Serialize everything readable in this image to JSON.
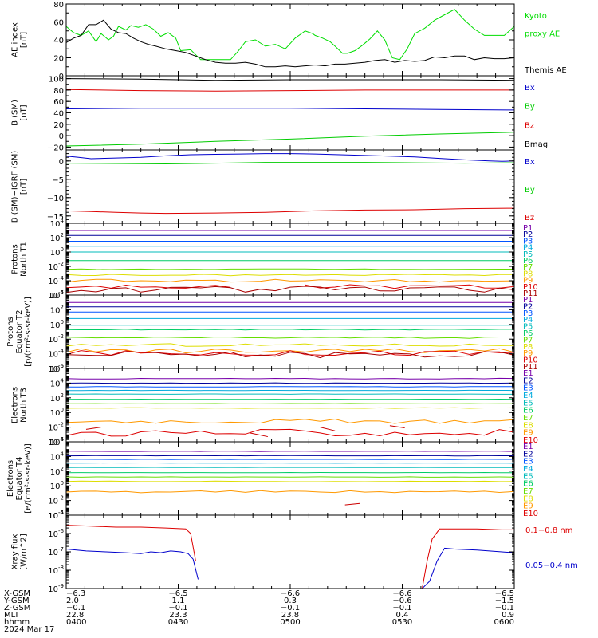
{
  "panels": [
    {
      "id": "ae",
      "type": "line",
      "ylabel": [
        "AE index",
        "[nT]"
      ],
      "ylim": [
        0,
        80
      ],
      "ticks": [
        {
          "v": 0,
          "label": "0"
        },
        {
          "v": 20,
          "label": "20"
        },
        {
          "v": 40,
          "label": "40"
        },
        {
          "v": 60,
          "label": "60"
        },
        {
          "v": 80,
          "label": "80"
        }
      ],
      "minor_step": 10,
      "legend": [
        {
          "text": "Kyoto",
          "color": "#00dd00"
        },
        {
          "text": "proxy AE",
          "color": "#00dd00"
        },
        {
          "text": "",
          "color": "#000000"
        },
        {
          "text": "Themis AE",
          "color": "#000000"
        }
      ],
      "series": [
        {
          "name": "Kyoto proxy AE",
          "color": "#00dd00",
          "x": [
            0,
            3,
            6,
            9,
            12,
            14,
            17,
            19,
            21,
            24,
            26,
            29,
            32,
            35,
            38,
            41,
            44,
            46,
            50,
            54,
            57,
            62,
            66,
            69,
            72,
            76,
            80,
            84,
            88,
            92,
            96,
            99,
            100,
            103,
            106,
            108,
            111,
            113,
            116,
            119,
            122,
            125,
            128,
            131,
            134,
            137,
            140,
            144,
            148,
            152,
            156,
            160,
            164,
            168,
            172,
            176,
            180
          ],
          "y": [
            55,
            48,
            45,
            50,
            38,
            47,
            40,
            44,
            55,
            51,
            56,
            54,
            57,
            52,
            44,
            48,
            42,
            28,
            29,
            18,
            18,
            18,
            18,
            27,
            38,
            40,
            33,
            35,
            30,
            42,
            50,
            47,
            45,
            42,
            38,
            33,
            25,
            25,
            28,
            34,
            41,
            50,
            40,
            20,
            18,
            30,
            47,
            53,
            62,
            68,
            74,
            62,
            52,
            45,
            45,
            45,
            55
          ]
        },
        {
          "name": "Themis AE",
          "color": "#000000",
          "x": [
            0,
            3,
            6,
            9,
            12,
            15,
            18,
            21,
            24,
            27,
            30,
            33,
            36,
            40,
            44,
            48,
            52,
            56,
            60,
            64,
            68,
            72,
            76,
            80,
            84,
            88,
            92,
            96,
            100,
            104,
            108,
            112,
            116,
            120,
            124,
            128,
            132,
            136,
            140,
            144,
            148,
            152,
            156,
            160,
            164,
            168,
            172,
            176,
            180
          ],
          "y": [
            37,
            42,
            45,
            57,
            57,
            62,
            52,
            48,
            47,
            42,
            38,
            35,
            33,
            30,
            28,
            26,
            22,
            18,
            15,
            14,
            14,
            15,
            13,
            10,
            10,
            11,
            10,
            11,
            12,
            11,
            13,
            13,
            14,
            15,
            17,
            18,
            15,
            17,
            16,
            17,
            21,
            20,
            22,
            22,
            18,
            20,
            19,
            19,
            20
          ]
        }
      ]
    },
    {
      "id": "bsm",
      "type": "line",
      "ylabel": [
        "B (SM)",
        "[nT]"
      ],
      "ylim": [
        -25,
        105
      ],
      "ticks": [
        {
          "v": -20,
          "label": "−20"
        },
        {
          "v": 0,
          "label": "0"
        },
        {
          "v": 20,
          "label": "20"
        },
        {
          "v": 40,
          "label": "40"
        },
        {
          "v": 60,
          "label": "60"
        },
        {
          "v": 80,
          "label": "80"
        },
        {
          "v": 100,
          "label": "100"
        }
      ],
      "minor_step": 10,
      "legend": [
        {
          "text": "Bx",
          "color": "#0000cc"
        },
        {
          "text": "By",
          "color": "#00cc00"
        },
        {
          "text": "Bz",
          "color": "#dd0000"
        },
        {
          "text": "Bmag",
          "color": "#000000"
        }
      ],
      "series": [
        {
          "name": "Bmag",
          "color": "#000000",
          "x": [
            0,
            30,
            60,
            90,
            120,
            150,
            180
          ],
          "y": [
            100,
            99,
            97,
            98,
            98,
            98,
            97
          ]
        },
        {
          "name": "Bz",
          "color": "#dd0000",
          "x": [
            0,
            30,
            60,
            90,
            120,
            150,
            180
          ],
          "y": [
            81,
            79,
            78,
            79,
            80,
            80,
            80
          ]
        },
        {
          "name": "Bx",
          "color": "#0000cc",
          "x": [
            0,
            30,
            60,
            90,
            120,
            150,
            180
          ],
          "y": [
            47,
            48,
            48,
            48,
            47,
            46,
            45
          ]
        },
        {
          "name": "By",
          "color": "#00cc00",
          "x": [
            0,
            30,
            60,
            90,
            120,
            150,
            180
          ],
          "y": [
            -18,
            -15,
            -10,
            -6,
            -1,
            3,
            6
          ]
        }
      ]
    },
    {
      "id": "bigrf",
      "type": "line",
      "ylabel": [
        "B (SM)−IGRF (SM)",
        "[nT]"
      ],
      "ylim": [
        -17,
        3
      ],
      "ticks": [
        {
          "v": -15,
          "label": "−15"
        },
        {
          "v": -10,
          "label": "−10"
        },
        {
          "v": -5,
          "label": "−5"
        },
        {
          "v": 0,
          "label": "0"
        }
      ],
      "minor_step": 1,
      "legend": [
        {
          "text": "Bx",
          "color": "#0000cc"
        },
        {
          "text": "By",
          "color": "#00cc00"
        },
        {
          "text": "Bz",
          "color": "#dd0000"
        }
      ],
      "series": [
        {
          "name": "Bx",
          "color": "#0000cc",
          "x": [
            0,
            5,
            10,
            20,
            30,
            40,
            50,
            60,
            70,
            80,
            90,
            100,
            110,
            120,
            130,
            140,
            150,
            160,
            170,
            175,
            180
          ],
          "y": [
            1.3,
            1.0,
            0.6,
            0.8,
            1.0,
            1.4,
            1.7,
            1.8,
            1.9,
            2.0,
            2.0,
            1.9,
            1.7,
            1.5,
            1.3,
            1.1,
            0.7,
            0.3,
            0.0,
            -0.1,
            0.0
          ]
        },
        {
          "name": "By",
          "color": "#00cc00",
          "x": [
            0,
            20,
            40,
            60,
            80,
            100,
            120,
            140,
            160,
            180
          ],
          "y": [
            -0.6,
            -0.7,
            -0.8,
            -0.6,
            -0.4,
            -0.4,
            -0.4,
            -0.5,
            -0.6,
            -0.5
          ]
        },
        {
          "name": "Bz",
          "color": "#dd0000",
          "x": [
            0,
            10,
            20,
            30,
            40,
            60,
            80,
            100,
            120,
            140,
            160,
            180
          ],
          "y": [
            -13.6,
            -13.8,
            -14.0,
            -14.2,
            -14.3,
            -14.2,
            -14.0,
            -13.6,
            -13.4,
            -13.3,
            -13.0,
            -12.9
          ]
        }
      ]
    },
    {
      "id": "pn1",
      "type": "log-lines",
      "ylabel": [
        "Protons",
        "North T1"
      ],
      "logmin": -6,
      "logmax": 4,
      "tick_exps": [
        -6,
        -4,
        -2,
        0,
        2,
        4
      ],
      "channel_labels": [
        "P1",
        "P2",
        "P3",
        "P4",
        "P5",
        "P6",
        "P7",
        "P8",
        "P9",
        "P10",
        "P11"
      ],
      "levels": [
        3.0,
        2.3,
        1.5,
        0.8,
        0.0,
        -1.2,
        -2.4,
        -3.2,
        -4.0,
        -4.8,
        -5.2
      ],
      "noise": [
        0,
        0,
        0,
        0,
        0,
        0,
        0.05,
        0.1,
        0.2,
        0.3,
        0.45
      ],
      "gaps": [
        null,
        null,
        null,
        null,
        null,
        null,
        null,
        null,
        null,
        [
          70,
          95
        ],
        null
      ]
    },
    {
      "id": "pe2",
      "type": "log-lines",
      "ylabel": [
        "Protons",
        "Equator T2",
        "[p/(cm²-s-sr-keV)]"
      ],
      "logmin": -6,
      "logmax": 4,
      "tick_exps": [
        -6,
        -4,
        -2,
        0,
        2,
        4
      ],
      "channel_labels": [
        "P1",
        "P2",
        "P3",
        "P4",
        "P5",
        "P6",
        "P7",
        "P8",
        "P9",
        "P10",
        "P11"
      ],
      "levels": [
        3.0,
        2.4,
        1.7,
        0.8,
        -0.1,
        -0.7,
        -1.8,
        -2.8,
        -3.6,
        -3.9,
        -4.1
      ],
      "noise": [
        0,
        0,
        0,
        0,
        0,
        0.05,
        0.1,
        0.2,
        0.3,
        0.35,
        0.45
      ],
      "gaps": [
        null,
        null,
        null,
        null,
        null,
        null,
        null,
        null,
        null,
        null,
        null
      ]
    },
    {
      "id": "en3",
      "type": "log-lines",
      "ylabel": [
        "Electrons",
        "North T3"
      ],
      "logmin": -4,
      "logmax": 6,
      "tick_exps": [
        -4,
        -2,
        0,
        2,
        4,
        6
      ],
      "channel_labels": [
        "E1",
        "E2",
        "E3",
        "E4",
        "E5",
        "E6",
        "E7",
        "E8",
        "E9",
        "E10"
      ],
      "levels": [
        4.6,
        4.0,
        3.5,
        3.0,
        2.5,
        1.8,
        1.2,
        0.6,
        -1.2,
        -2.8
      ],
      "noise": [
        0.05,
        0.03,
        0.03,
        0.02,
        0.02,
        0.02,
        0.03,
        0.05,
        0.3,
        0.5
      ],
      "gaps": [
        null,
        null,
        null,
        null,
        null,
        null,
        null,
        null,
        null,
        null
      ],
      "fragments": [
        {
          "color": "#cc0000",
          "x0": 8,
          "y0": -2.3,
          "x1": 14,
          "y1": -2.0
        },
        {
          "color": "#cc0000",
          "x0": 74,
          "y0": -2.8,
          "x1": 81,
          "y1": -3.3
        },
        {
          "color": "#cc0000",
          "x0": 102,
          "y0": -2.0,
          "x1": 108,
          "y1": -2.5
        },
        {
          "color": "#cc0000",
          "x0": 130,
          "y0": -1.8,
          "x1": 136,
          "y1": -2.1
        }
      ]
    },
    {
      "id": "ee4",
      "type": "log-lines",
      "ylabel": [
        "Electrons",
        "Equator T4",
        "[e/(cm²-s-sr-keV)]"
      ],
      "logmin": -4,
      "logmax": 6,
      "tick_exps": [
        -4,
        -2,
        0,
        2,
        4,
        6
      ],
      "channel_labels": [
        "E1",
        "E2",
        "E3",
        "E4",
        "E5",
        "E6",
        "E7",
        "E8",
        "E9",
        "E10"
      ],
      "levels": [
        4.7,
        4.1,
        3.6,
        3.1,
        2.5,
        1.8,
        1.2,
        0.6,
        -0.8,
        -2.5
      ],
      "noise": [
        0.03,
        0.02,
        0.02,
        0.02,
        0.02,
        0.02,
        0.03,
        0.04,
        0.15,
        0.1
      ],
      "gaps": [
        null,
        null,
        null,
        null,
        null,
        null,
        null,
        null,
        null,
        [
          0,
          190
        ]
      ],
      "fragments": [
        {
          "color": "#cc0000",
          "x0": 112,
          "y0": -2.6,
          "x1": 118,
          "y1": -2.4
        }
      ]
    },
    {
      "id": "xray",
      "type": "log-line",
      "ylabel": [
        "Xray flux",
        "[W/m^2]"
      ],
      "logmin": -9,
      "logmax": -5,
      "tick_exps": [
        -9,
        -8,
        -7,
        -6,
        -5
      ],
      "legend": [
        {
          "text": "0.1−0.8 nm",
          "color": "#dd0000"
        },
        {
          "text": "0.05−0.4 nm",
          "color": "#0000cc"
        }
      ],
      "series": [
        {
          "name": "0.1−0.8 nm",
          "color": "#dd0000",
          "segments": [
            {
              "x": [
                0,
                10,
                20,
                30,
                40,
                48,
                50,
                52
              ],
              "y": [
                -5.55,
                -5.6,
                -5.65,
                -5.65,
                -5.7,
                -5.75,
                -6.0,
                -7.5
              ]
            },
            {
              "x": [
                143,
                145,
                147,
                150,
                155,
                165,
                175,
                180
              ],
              "y": [
                -9.0,
                -7.5,
                -6.3,
                -5.75,
                -5.75,
                -5.75,
                -5.8,
                -5.8
              ]
            }
          ]
        },
        {
          "name": "0.05−0.4 nm",
          "color": "#0000cc",
          "segments": [
            {
              "x": [
                0,
                8,
                16,
                24,
                30,
                34,
                38,
                42,
                46,
                49,
                51,
                53
              ],
              "y": [
                -6.85,
                -6.95,
                -7.0,
                -7.05,
                -7.1,
                -7.0,
                -7.05,
                -6.95,
                -7.0,
                -7.1,
                -7.4,
                -8.5
              ]
            },
            {
              "x": [
                143,
                146,
                149,
                152,
                156,
                165,
                175,
                180
              ],
              "y": [
                -9.0,
                -8.6,
                -7.5,
                -6.8,
                -6.85,
                -6.9,
                -7.0,
                -7.05
              ]
            }
          ]
        }
      ]
    }
  ],
  "ephemeris": {
    "rows": [
      {
        "name": "X-GSM",
        "values": [
          "−6.3",
          "−6.5",
          "−6.6",
          "−6.6",
          "−6.5"
        ]
      },
      {
        "name": "Y-GSM",
        "values": [
          "2.0",
          "1.1",
          "0.3",
          "−0.6",
          "−1.5"
        ]
      },
      {
        "name": "Z-GSM",
        "values": [
          "−0.1",
          "−0.1",
          "−0.1",
          "−0.1",
          "−0.1"
        ]
      },
      {
        "name": "MLT",
        "values": [
          "22.8",
          "23.3",
          "23.8",
          "0.4",
          "0.9"
        ]
      },
      {
        "name": "hhmm",
        "values": [
          "0400",
          "0430",
          "0500",
          "0530",
          "0600"
        ]
      }
    ],
    "date": "2024 Mar 17",
    "tick_minutes": [
      0,
      30,
      60,
      90,
      120
    ]
  },
  "chart_data": {
    "type": "line",
    "title": "",
    "x_axis": {
      "unit": "UT",
      "range": [
        "0400",
        "0600"
      ],
      "ticks": [
        "0400",
        "0430",
        "0500",
        "0530",
        "0600"
      ],
      "date": "2024 Mar 17"
    },
    "panels": [
      "AE index",
      "B (SM)",
      "B (SM)−IGRF (SM)",
      "Protons North T1",
      "Protons Equator T2",
      "Electrons North T3",
      "Electrons Equator T4",
      "Xray flux"
    ],
    "series": [
      {
        "name": "Kyoto proxy AE",
        "panel": "AE index"
      },
      {
        "name": "Themis AE",
        "panel": "AE index"
      },
      {
        "name": "Bx",
        "panel": "B (SM)"
      },
      {
        "name": "By",
        "panel": "B (SM)"
      },
      {
        "name": "Bz",
        "panel": "B (SM)"
      },
      {
        "name": "Bmag",
        "panel": "B (SM)"
      },
      {
        "name": "0.1−0.8 nm",
        "panel": "Xray flux"
      },
      {
        "name": "0.05−0.4 nm",
        "panel": "Xray flux"
      }
    ],
    "grid": false,
    "legend": "right"
  },
  "colors": {
    "channels": [
      "#000000",
      "#7700aa",
      "#000099",
      "#0055ff",
      "#00aadd",
      "#00bbbb",
      "#00cc66",
      "#66dd00",
      "#dddd00",
      "#ff9900",
      "#dd0000",
      "#aa0000"
    ]
  }
}
